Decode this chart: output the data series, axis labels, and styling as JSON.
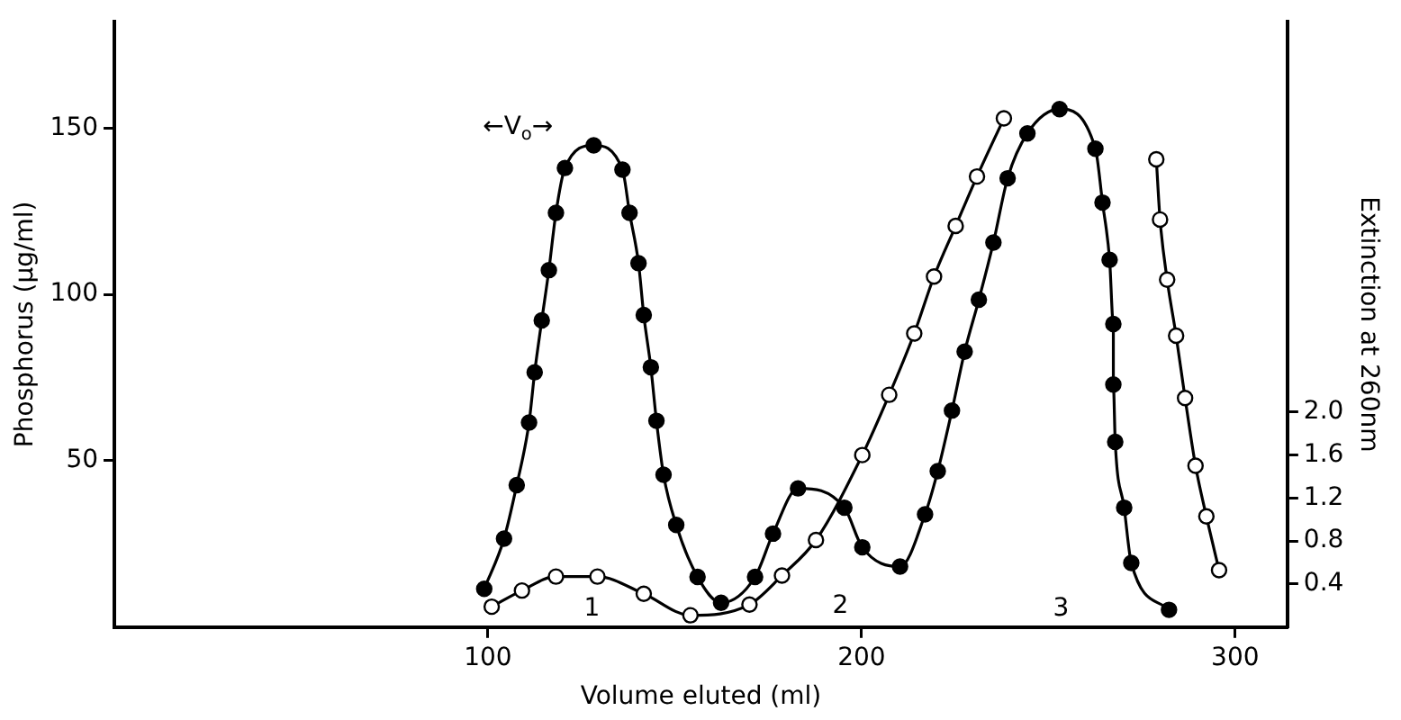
{
  "chart_data": {
    "type": "line",
    "xlabel": "Volume eluted (ml)",
    "ylabel": "Phosphorus (μg/ml)",
    "y2label": "Extinction at 260nm",
    "xlim": [
      0,
      314
    ],
    "xticks": [
      100,
      200,
      300
    ],
    "ylim": [
      0,
      182
    ],
    "yticks": [
      50,
      100,
      150
    ],
    "y2lim": [
      0,
      5.63
    ],
    "y2ticks": [
      0.4,
      0.8,
      1.2,
      1.6,
      {
        "value": 2.0,
        "label": "2.0"
      }
    ],
    "grid": false,
    "legend": false,
    "marker": "circle",
    "series": [
      {
        "color": "#000000",
        "x": [
          99.0,
          104.3,
          107.7,
          111.0,
          112.5,
          114.4,
          116.3,
          118.2,
          120.6,
          128.3,
          136.0,
          137.9,
          140.3,
          141.7,
          143.6,
          145.1,
          147.0,
          150.4,
          156.1,
          162.4,
          171.5,
          176.3,
          183.0,
          195.4,
          200.2,
          210.3,
          217.0,
          220.4,
          224.2,
          227.6,
          231.4,
          235.3,
          239.1,
          244.4,
          253.0,
          262.6,
          264.5,
          266.4,
          267.4,
          267.4,
          267.9,
          270.3,
          272.2,
          282.3
        ],
        "values": [
          11.5,
          26.6,
          42.7,
          61.5,
          76.6,
          92.2,
          107.3,
          124.5,
          138,
          144.8,
          137.5,
          124.5,
          109.4,
          93.8,
          78.1,
          62.0,
          45.8,
          30.7,
          15.1,
          7.3,
          15.1,
          28.1,
          41.7,
          35.9,
          24.0,
          18.2,
          33.9,
          46.9,
          65.1,
          82.8,
          98.4,
          115.6,
          134.9,
          148.4,
          155.7,
          143.8,
          127.6,
          110.4,
          91.1,
          72.9,
          55.7,
          35.9,
          19.3,
          5.2
        ]
      },
      {
        "color": "#000000",
        "axis": "y2",
        "x": [
          101.0,
          109.1,
          118.2,
          129.3,
          141.7,
          154.2,
          170.0,
          178.7,
          187.8,
          200.2,
          207.4,
          214.1,
          219.4,
          225.2,
          230.9,
          238.1,
          258,
          278.9,
          279.9,
          281.8,
          284.2,
          286.6,
          289.4,
          292.3,
          295.7
        ],
        "values": [
          0.19,
          0.34,
          0.47,
          0.47,
          0.31,
          0.11,
          0.21,
          0.48,
          0.81,
          1.6,
          2.16,
          2.73,
          3.26,
          3.73,
          4.19,
          4.73,
          null,
          4.35,
          3.79,
          3.23,
          2.71,
          2.13,
          1.5,
          1.03,
          0.53
        ]
      }
    ],
    "annotations": [
      "←V$_{o}$→",
      "1",
      "2",
      "3"
    ]
  }
}
